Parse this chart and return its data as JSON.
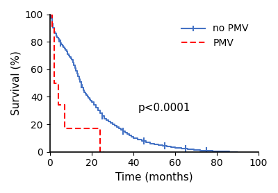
{
  "title": "",
  "xlabel": "Time (months)",
  "ylabel": "Survival (%)",
  "pvalue_text": "p<0.0001",
  "pvalue_x": 55,
  "pvalue_y": 32,
  "xlim": [
    0,
    100
  ],
  "ylim": [
    0,
    100
  ],
  "xticks": [
    0,
    20,
    40,
    60,
    80,
    100
  ],
  "yticks": [
    0,
    20,
    40,
    60,
    80,
    100
  ],
  "no_pmv_color": "#4472C4",
  "pmv_color": "#FF0000",
  "background_color": "#ffffff",
  "no_pmv_times": [
    0,
    0.5,
    1,
    1.5,
    2,
    2.5,
    3,
    3.5,
    4,
    4.5,
    5,
    5.5,
    6,
    6.5,
    7,
    7.5,
    8,
    8.5,
    9,
    9.5,
    10,
    10.5,
    11,
    11.5,
    12,
    12.5,
    13,
    13.5,
    14,
    14.5,
    15,
    15.5,
    16,
    16.5,
    17,
    17.5,
    18,
    18.5,
    19,
    19.5,
    20,
    21,
    22,
    23,
    24,
    25,
    26,
    27,
    28,
    29,
    30,
    31,
    32,
    33,
    34,
    35,
    36,
    37,
    38,
    39,
    40,
    42,
    44,
    46,
    48,
    50,
    52,
    54,
    56,
    58,
    60,
    63,
    66,
    69,
    72,
    75,
    78,
    82,
    86,
    90
  ],
  "no_pmv_survival": [
    100,
    97,
    93,
    90,
    87,
    86,
    84,
    83,
    82,
    80,
    79,
    78,
    77,
    76,
    75,
    74,
    73,
    71,
    70,
    69,
    68,
    67,
    65,
    63,
    61,
    59,
    57,
    55,
    53,
    51,
    49,
    47,
    45,
    43,
    42,
    41,
    40,
    39,
    38,
    37,
    36,
    34,
    32,
    30,
    28,
    26,
    24,
    23,
    22,
    21,
    20,
    19,
    18,
    17,
    16,
    15,
    14,
    13,
    12,
    11,
    10,
    9,
    8,
    7,
    6,
    5.5,
    5,
    4.5,
    4,
    3.5,
    3,
    2.5,
    2,
    1.5,
    1,
    0.8,
    0.6,
    0.3,
    0.1,
    0
  ],
  "pmv_times": [
    0,
    1,
    2,
    3,
    4,
    5,
    6,
    7,
    8,
    9,
    10,
    12,
    14,
    16,
    18,
    20,
    22,
    24,
    26
  ],
  "pmv_survival": [
    100,
    91,
    50,
    50,
    34,
    34,
    34,
    17,
    17,
    17,
    17,
    17,
    17,
    17,
    17,
    17,
    17,
    0,
    0
  ],
  "legend_loc": "upper right",
  "fontsize_label": 11,
  "fontsize_tick": 10,
  "fontsize_pvalue": 11,
  "fontsize_legend": 10
}
